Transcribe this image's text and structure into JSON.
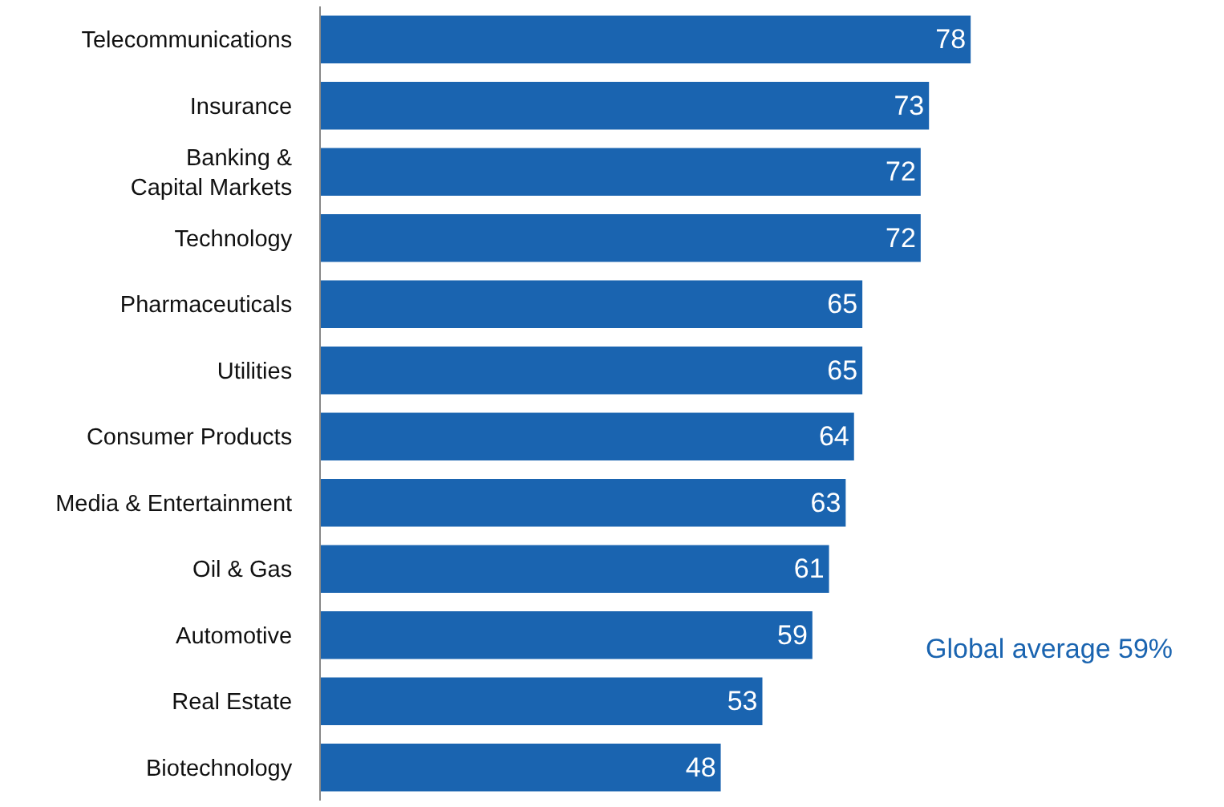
{
  "chart_data": {
    "type": "bar",
    "orientation": "horizontal",
    "categories": [
      "Telecommunications",
      "Insurance",
      "Banking &\nCapital Markets",
      "Technology",
      "Pharmaceuticals",
      "Utilities",
      "Consumer Products",
      "Media & Entertainment",
      "Oil & Gas",
      "Automotive",
      "Real Estate",
      "Biotechnology"
    ],
    "values": [
      78,
      73,
      72,
      72,
      65,
      65,
      64,
      63,
      61,
      59,
      53,
      48
    ],
    "color": "#1a64b0",
    "data_labels": true,
    "tick_labels": "y",
    "grid": false,
    "legend": false,
    "annotations": [
      "Global average 59%"
    ]
  }
}
